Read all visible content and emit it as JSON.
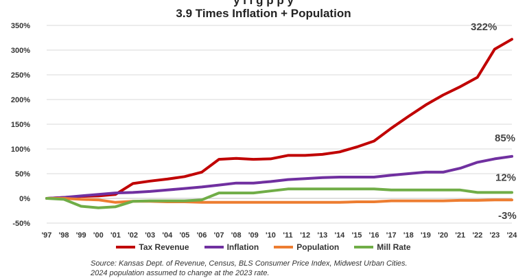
{
  "chart_data": {
    "type": "line",
    "title_partial": "y  l  l   g   p  p  y",
    "title": "3.9 Times Inflation + Population",
    "categories": [
      "'97",
      "'98",
      "'99",
      "'00",
      "'01",
      "'02",
      "'03",
      "'04",
      "'05",
      "'06",
      "'07",
      "'08",
      "'09",
      "'10",
      "'11",
      "'12",
      "'13",
      "'14",
      "'15",
      "'16",
      "'17",
      "'18",
      "'19",
      "'20",
      "'21",
      "'22",
      "'23",
      "'24"
    ],
    "ylim": [
      -50,
      350
    ],
    "yticks": [
      -50,
      0,
      50,
      100,
      150,
      200,
      250,
      300,
      350
    ],
    "ytick_labels": [
      "-50%",
      "0%",
      "50%",
      "100%",
      "150%",
      "200%",
      "250%",
      "300%",
      "350%"
    ],
    "series": [
      {
        "name": "Tax Revenue",
        "color": "#c00000",
        "values": [
          0,
          2,
          4,
          5,
          8,
          30,
          35,
          39,
          44,
          53,
          79,
          81,
          79,
          80,
          87,
          87,
          89,
          94,
          104,
          116,
          142,
          166,
          189,
          209,
          226,
          245,
          302,
          322
        ],
        "end_label": "322%"
      },
      {
        "name": "Inflation",
        "color": "#7030a0",
        "values": [
          0,
          2,
          5,
          8,
          11,
          12,
          14,
          17,
          20,
          23,
          27,
          31,
          31,
          34,
          38,
          40,
          42,
          43,
          43,
          43,
          47,
          50,
          53,
          53,
          61,
          73,
          80,
          85
        ],
        "end_label": "85%"
      },
      {
        "name": "Population",
        "color": "#ed7d31",
        "values": [
          0,
          0,
          -2,
          -3,
          -8,
          -6,
          -6,
          -7,
          -7,
          -8,
          -8,
          -8,
          -8,
          -8,
          -8,
          -8,
          -8,
          -8,
          -7,
          -7,
          -5,
          -5,
          -5,
          -5,
          -4,
          -4,
          -3,
          -3
        ],
        "end_label": "-3%"
      },
      {
        "name": "Mill Rate",
        "color": "#70ad47",
        "values": [
          0,
          -2,
          -16,
          -19,
          -17,
          -6,
          -5,
          -5,
          -5,
          -3,
          11,
          11,
          11,
          15,
          19,
          19,
          19,
          19,
          19,
          19,
          17,
          17,
          17,
          17,
          17,
          12,
          12,
          12
        ],
        "end_label": "12%"
      }
    ],
    "legend": [
      "Tax Revenue",
      "Inflation",
      "Population",
      "Mill Rate"
    ]
  },
  "source_line1": "Source: Kansas Dept. of Revenue, Census, BLS Consumer Price Index, Midwest Urban Cities.",
  "source_line2": "2024 population assumed to change at the 2023 rate."
}
